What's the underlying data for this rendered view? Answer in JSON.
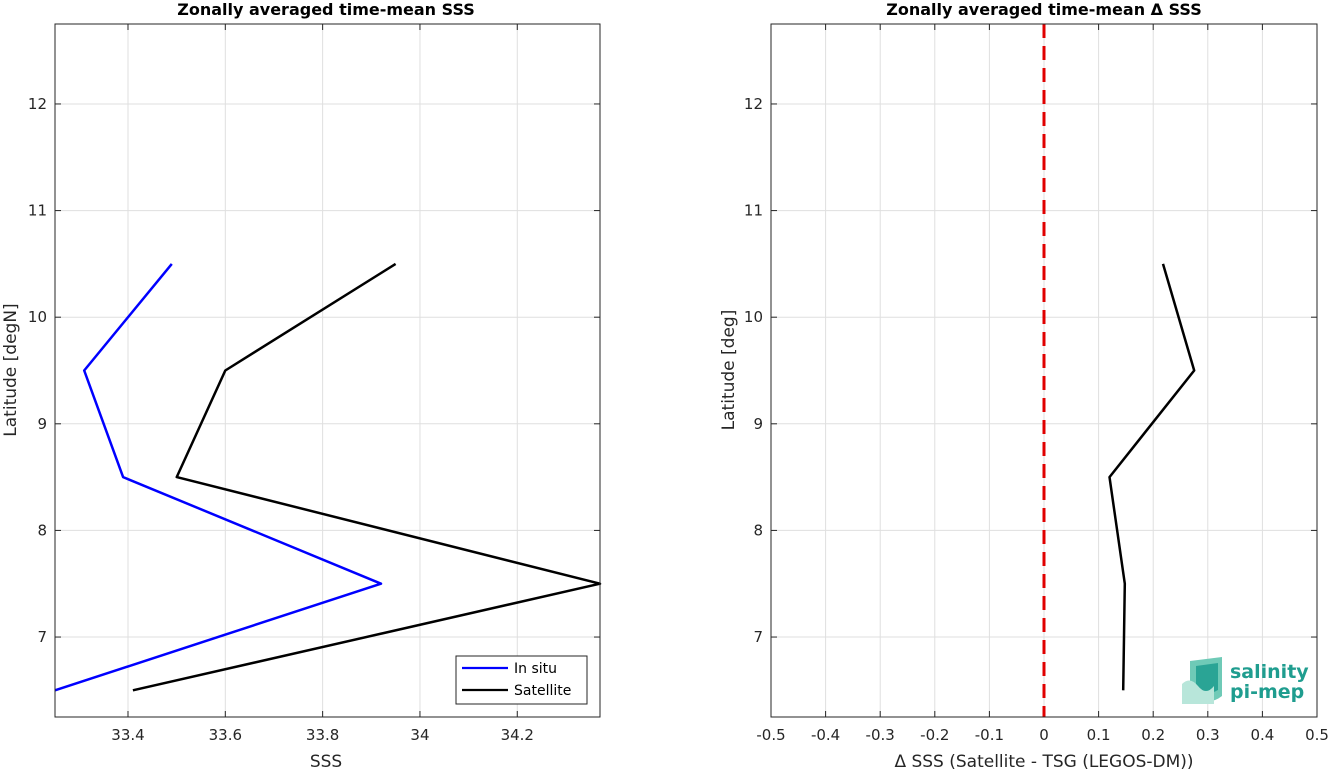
{
  "chart_data": [
    {
      "type": "line",
      "title": "Zonally averaged time-mean SSS",
      "xlabel": "SSS",
      "ylabel": "Latitude [degN]",
      "xlim": [
        33.25,
        34.37
      ],
      "ylim": [
        6.25,
        12.75
      ],
      "xticks": [
        33.4,
        33.6,
        33.8,
        34,
        34.2
      ],
      "xtick_labels": [
        "33.4",
        "33.6",
        "33.8",
        "34",
        "34.2"
      ],
      "yticks": [
        7,
        8,
        9,
        10,
        11,
        12
      ],
      "ytick_labels": [
        "7",
        "8",
        "9",
        "10",
        "11",
        "12"
      ],
      "grid": true,
      "legend_position": "bottom-right",
      "series": [
        {
          "name": "In situ",
          "color": "#0000ff",
          "x": [
            33.25,
            33.92,
            33.39,
            33.31,
            33.49
          ],
          "y": [
            6.5,
            7.5,
            8.5,
            9.5,
            10.5
          ]
        },
        {
          "name": "Satellite",
          "color": "#000000",
          "x": [
            33.41,
            34.37,
            33.5,
            33.6,
            33.95
          ],
          "y": [
            6.5,
            7.5,
            8.5,
            9.5,
            10.5
          ]
        }
      ]
    },
    {
      "type": "line",
      "title": "Zonally averaged time-mean Δ SSS",
      "xlabel": "Δ SSS (Satellite - TSG (LEGOS-DM))",
      "ylabel": "Latitude [deg]",
      "xlim": [
        -0.5,
        0.5
      ],
      "ylim": [
        6.25,
        12.75
      ],
      "xticks": [
        -0.5,
        -0.4,
        -0.3,
        -0.2,
        -0.1,
        0,
        0.1,
        0.2,
        0.3,
        0.4,
        0.5
      ],
      "xtick_labels": [
        "-0.5",
        "-0.4",
        "-0.3",
        "-0.2",
        "-0.1",
        "0",
        "0.1",
        "0.2",
        "0.3",
        "0.4",
        "0.5"
      ],
      "yticks": [
        7,
        8,
        9,
        10,
        11,
        12
      ],
      "ytick_labels": [
        "7",
        "8",
        "9",
        "10",
        "11",
        "12"
      ],
      "grid": true,
      "reference_line": {
        "x": 0,
        "color": "#e00000",
        "style": "dashed"
      },
      "series": [
        {
          "color": "#000000",
          "x": [
            0.145,
            0.148,
            0.12,
            0.275,
            0.218
          ],
          "y": [
            6.5,
            7.5,
            8.5,
            9.5,
            10.5
          ]
        }
      ]
    }
  ],
  "logo": {
    "line1": "salinity",
    "line2": "pi-mep",
    "color": "#1f9d8f"
  }
}
